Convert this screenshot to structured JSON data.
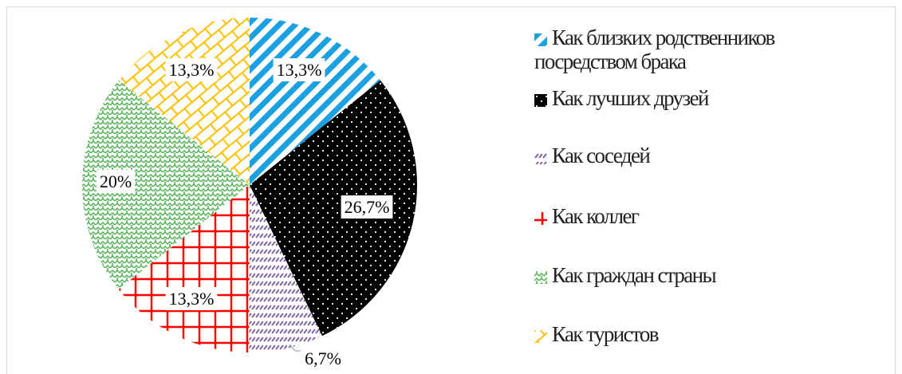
{
  "chart_data": {
    "type": "pie",
    "categories": [
      "Как близких родственников посредством брака",
      "Как лучших друзей",
      "Как соседей",
      "Как коллег",
      "Как граждан страны",
      "Как туристов"
    ],
    "values": [
      13.3,
      26.7,
      6.7,
      13.3,
      20,
      13.3
    ],
    "value_labels": [
      "13,3%",
      "26,7%",
      "6,7%",
      "13,3%",
      "20%",
      "13,3%"
    ],
    "colors": [
      "#1ba1e2",
      "#000000",
      "#8064a2",
      "#ff0000",
      "#4caf50",
      "#ffc000"
    ],
    "legend": "right"
  }
}
